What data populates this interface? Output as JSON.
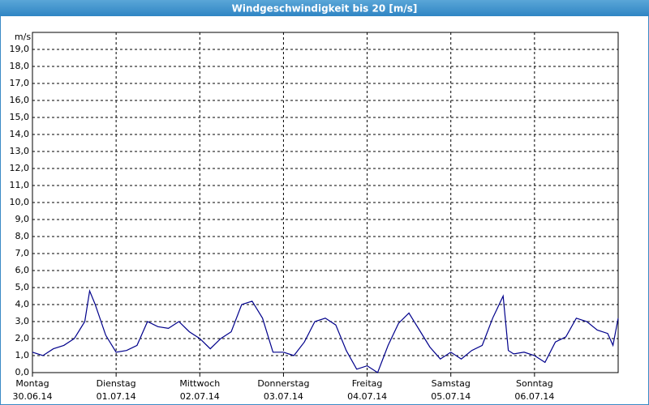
{
  "chart_data": {
    "type": "line",
    "title": "Windgeschwindigkeit bis 20 [m/s]",
    "y_unit": "m/s",
    "color": "#00008b",
    "grid": true,
    "xlim": [
      0,
      168
    ],
    "ylim": [
      0,
      20
    ],
    "xticks": [
      {
        "value": 0,
        "label": "Montag"
      },
      {
        "value": 24,
        "label": "Dienstag"
      },
      {
        "value": 48,
        "label": "Mittwoch"
      },
      {
        "value": 72,
        "label": "Donnerstag"
      },
      {
        "value": 96,
        "label": "Freitag"
      },
      {
        "value": 120,
        "label": "Samstag"
      },
      {
        "value": 144,
        "label": "Sonntag"
      }
    ],
    "xtick_dates": [
      "30.06.14",
      "01.07.14",
      "02.07.14",
      "03.07.14",
      "04.07.14",
      "05.07.14",
      "06.07.14"
    ],
    "yticks": [
      {
        "value": 0,
        "label": "0,0"
      },
      {
        "value": 1,
        "label": "1,0"
      },
      {
        "value": 2,
        "label": "2,0"
      },
      {
        "value": 3,
        "label": "3,0"
      },
      {
        "value": 4,
        "label": "4,0"
      },
      {
        "value": 5,
        "label": "5,0"
      },
      {
        "value": 6,
        "label": "6,0"
      },
      {
        "value": 7,
        "label": "7,0"
      },
      {
        "value": 8,
        "label": "8,0"
      },
      {
        "value": 9,
        "label": "9,0"
      },
      {
        "value": 10,
        "label": "10,0"
      },
      {
        "value": 11,
        "label": "11,0"
      },
      {
        "value": 12,
        "label": "12,0"
      },
      {
        "value": 13,
        "label": "13,0"
      },
      {
        "value": 14,
        "label": "14,0"
      },
      {
        "value": 15,
        "label": "15,0"
      },
      {
        "value": 16,
        "label": "16,0"
      },
      {
        "value": 17,
        "label": "17,0"
      },
      {
        "value": 18,
        "label": "18,0"
      },
      {
        "value": 19,
        "label": "19,0"
      }
    ],
    "x": [
      0,
      3,
      6,
      9,
      12,
      15,
      16.4,
      18,
      21,
      24,
      27,
      30,
      33,
      36,
      39,
      42,
      45,
      48,
      51,
      54,
      57,
      60,
      63,
      66,
      69,
      72,
      75,
      78,
      81,
      84,
      87,
      90,
      93,
      96,
      99,
      102,
      105,
      108,
      111,
      114,
      117,
      120,
      123,
      126,
      129,
      132,
      135,
      136.5,
      138,
      141,
      144,
      147,
      150,
      153,
      156,
      159,
      162,
      165,
      166.5,
      168
    ],
    "values": [
      1.2,
      1.0,
      1.4,
      1.6,
      2.0,
      3.0,
      4.8,
      4.0,
      2.2,
      1.2,
      1.3,
      1.6,
      3.0,
      2.7,
      2.6,
      3.0,
      2.4,
      2.0,
      1.4,
      2.0,
      2.4,
      4.0,
      4.2,
      3.2,
      1.2,
      1.2,
      1.0,
      1.8,
      3.0,
      3.2,
      2.8,
      1.3,
      0.2,
      0.4,
      0.0,
      1.6,
      2.9,
      3.5,
      2.5,
      1.5,
      0.8,
      1.2,
      0.8,
      1.3,
      1.6,
      3.2,
      4.5,
      1.3,
      1.1,
      1.2,
      1.0,
      0.6,
      1.8,
      2.1,
      3.2,
      3.0,
      2.5,
      2.3,
      1.6,
      3.2
    ]
  }
}
